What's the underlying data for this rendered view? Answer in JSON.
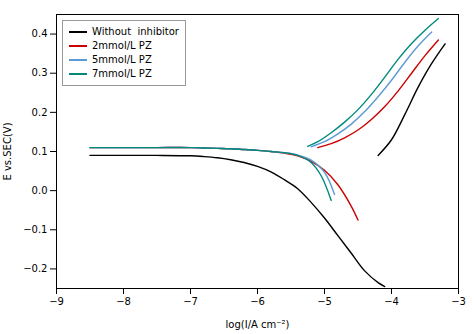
{
  "chart_data": {
    "type": "line",
    "xlabel": "log(I/A cm⁻²)",
    "ylabel": "E vs.SEC(V)",
    "xlim": [
      -9,
      -3
    ],
    "ylim": [
      -0.25,
      0.45
    ],
    "xticks": [
      -9,
      -8,
      -7,
      -6,
      -5,
      -4,
      -3
    ],
    "yticks": [
      -0.2,
      -0.1,
      {
        "value": 0.0,
        "label": "0.0"
      },
      0.1,
      0.2,
      0.3,
      0.4
    ],
    "grid": false,
    "legend": "upper left",
    "series": [
      {
        "name": "Without  inhibitor",
        "color": "#000000",
        "x": [
          -8.5,
          -8.0,
          -7.5,
          -7.0,
          -6.8,
          -6.6,
          -6.4,
          -6.2,
          -6.0,
          -5.8,
          -5.6,
          -5.4,
          -5.2,
          -5.0,
          -4.8,
          -4.6,
          -4.4,
          -4.2,
          -4.1,
          null,
          -4.2,
          -4.0,
          -3.8,
          -3.6,
          -3.4,
          -3.2
        ],
        "values": [
          0.09,
          0.09,
          0.09,
          0.089,
          0.087,
          0.084,
          0.079,
          0.072,
          0.062,
          0.048,
          0.028,
          0.005,
          -0.03,
          -0.07,
          -0.115,
          -0.16,
          -0.205,
          -0.235,
          -0.245,
          null,
          0.09,
          0.13,
          0.195,
          0.265,
          0.325,
          0.375
        ]
      },
      {
        "name": "2mmol/L PZ",
        "color": "#cc0000",
        "x": [
          -8.5,
          -8.0,
          -7.5,
          -7.0,
          -6.8,
          -6.6,
          -6.4,
          -6.2,
          -6.0,
          -5.8,
          -5.6,
          -5.4,
          -5.2,
          -5.0,
          -4.8,
          -4.6,
          -4.5,
          null,
          -5.1,
          -4.9,
          -4.7,
          -4.5,
          -4.3,
          -4.1,
          -3.9,
          -3.7,
          -3.5,
          -3.3
        ],
        "values": [
          0.11,
          0.11,
          0.11,
          0.11,
          0.109,
          0.108,
          0.107,
          0.105,
          0.103,
          0.1,
          0.096,
          0.089,
          0.075,
          0.052,
          0.015,
          -0.04,
          -0.075,
          null,
          0.11,
          0.12,
          0.135,
          0.155,
          0.182,
          0.215,
          0.255,
          0.3,
          0.345,
          0.385
        ]
      },
      {
        "name": "5mmol/L PZ",
        "color": "#5b9bd5",
        "x": [
          -8.5,
          -8.0,
          -7.5,
          -7.0,
          -6.8,
          -6.6,
          -6.4,
          -6.2,
          -6.0,
          -5.8,
          -5.6,
          -5.4,
          -5.2,
          -5.0,
          -4.85,
          null,
          -5.2,
          -5.0,
          -4.8,
          -4.6,
          -4.4,
          -4.2,
          -4.0,
          -3.8,
          -3.6,
          -3.4
        ],
        "values": [
          0.11,
          0.11,
          0.11,
          0.11,
          0.109,
          0.108,
          0.107,
          0.105,
          0.103,
          0.1,
          0.097,
          0.091,
          0.078,
          0.047,
          -0.01,
          null,
          0.112,
          0.125,
          0.145,
          0.17,
          0.202,
          0.24,
          0.282,
          0.328,
          0.37,
          0.405
        ]
      },
      {
        "name": "7mmol/L PZ",
        "color": "#00897b",
        "x": [
          -8.5,
          -8.0,
          -7.5,
          -7.0,
          -6.8,
          -6.6,
          -6.4,
          -6.2,
          -6.0,
          -5.8,
          -5.6,
          -5.4,
          -5.2,
          -5.05,
          -4.9,
          null,
          -5.25,
          -5.1,
          -4.9,
          -4.7,
          -4.5,
          -4.3,
          -4.1,
          -3.9,
          -3.7,
          -3.5,
          -3.3
        ],
        "values": [
          0.11,
          0.11,
          0.11,
          0.11,
          0.109,
          0.108,
          0.107,
          0.105,
          0.103,
          0.1,
          0.097,
          0.09,
          0.072,
          0.038,
          -0.025,
          null,
          0.113,
          0.125,
          0.148,
          0.175,
          0.207,
          0.246,
          0.29,
          0.336,
          0.376,
          0.41,
          0.44
        ]
      }
    ]
  }
}
